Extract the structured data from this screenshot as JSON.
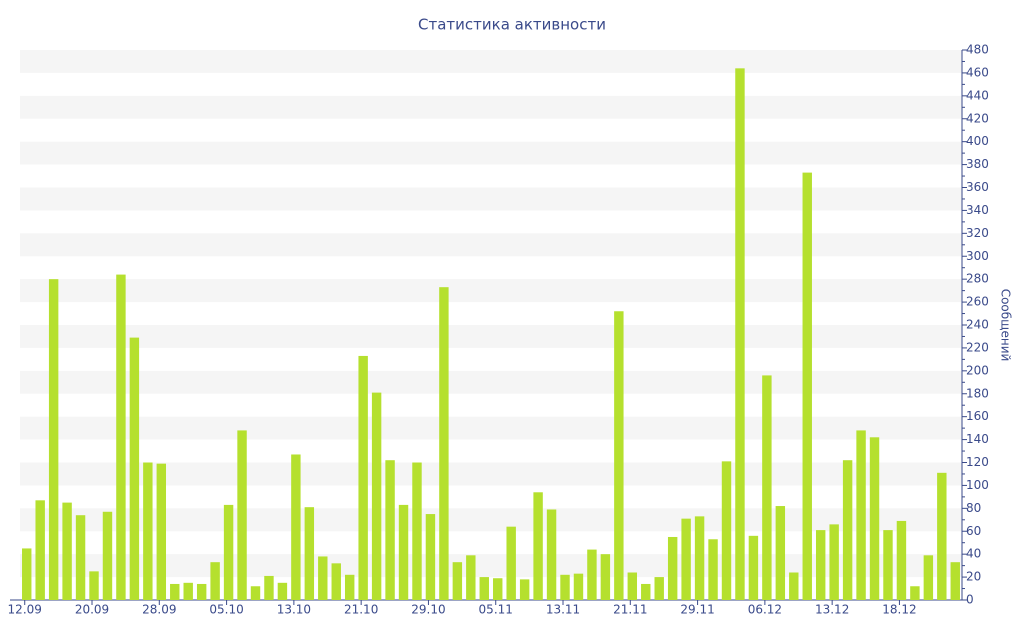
{
  "chart_data": {
    "type": "bar",
    "title": "Статистика активности",
    "y_axis_label": "Сообщений",
    "categories": [
      "12.09",
      null,
      null,
      null,
      null,
      "20.09",
      null,
      null,
      null,
      null,
      "28.09",
      null,
      null,
      null,
      null,
      "05.10",
      null,
      null,
      null,
      null,
      "13.10",
      null,
      null,
      null,
      null,
      "21.10",
      null,
      null,
      null,
      null,
      "29.10",
      null,
      null,
      null,
      null,
      "05.11",
      null,
      null,
      null,
      null,
      "13.11",
      null,
      null,
      null,
      null,
      "21.11",
      null,
      null,
      null,
      null,
      "29.11",
      null,
      null,
      null,
      null,
      "06.12",
      null,
      null,
      null,
      null,
      "13.12",
      null,
      null,
      null,
      null,
      "18.12",
      null,
      null,
      null,
      null
    ],
    "values": [
      45,
      87,
      280,
      85,
      74,
      25,
      77,
      284,
      229,
      120,
      119,
      14,
      15,
      14,
      33,
      83,
      148,
      12,
      21,
      15,
      127,
      81,
      38,
      32,
      22,
      213,
      181,
      122,
      83,
      120,
      75,
      273,
      33,
      39,
      20,
      19,
      64,
      18,
      94,
      79,
      22,
      23,
      44,
      40,
      252,
      24,
      14,
      20,
      55,
      71,
      73,
      53,
      121,
      464,
      56,
      196,
      82,
      24,
      373,
      61,
      66,
      122,
      148,
      142,
      61,
      69,
      12,
      39,
      111,
      33
    ],
    "color": "#b5e02e",
    "ylim": [
      0,
      480
    ],
    "yticks": [
      0,
      20,
      40,
      60,
      80,
      100,
      120,
      140,
      160,
      180,
      200,
      220,
      240,
      260,
      280,
      300,
      320,
      340,
      360,
      380,
      400,
      420,
      440,
      460,
      480
    ],
    "axis_side": "right",
    "grid": "bands"
  }
}
